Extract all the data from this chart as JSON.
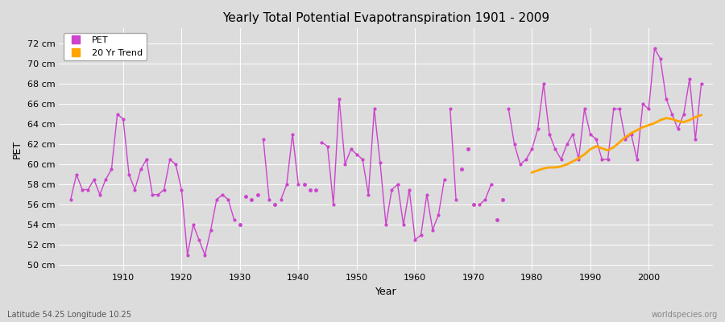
{
  "title": "Yearly Total Potential Evapotranspiration 1901 - 2009",
  "xlabel": "Year",
  "ylabel": "PET",
  "subtitle": "Latitude 54.25 Longitude 10.25",
  "watermark": "worldspecies.org",
  "pet_color": "#cc44cc",
  "trend_color": "#FFA500",
  "bg_color": "#dcdcdc",
  "ylim": [
    49.5,
    73.5
  ],
  "ytick_labels": [
    "50 cm",
    "52 cm",
    "54 cm",
    "56 cm",
    "58 cm",
    "60 cm",
    "62 cm",
    "64 cm",
    "66 cm",
    "68 cm",
    "70 cm",
    "72 cm"
  ],
  "ytick_values": [
    50,
    52,
    54,
    56,
    58,
    60,
    62,
    64,
    66,
    68,
    70,
    72
  ],
  "years": [
    1901,
    1902,
    1903,
    1904,
    1905,
    1906,
    1907,
    1908,
    1909,
    1910,
    1911,
    1912,
    1913,
    1914,
    1915,
    1916,
    1917,
    1918,
    1919,
    1920,
    1921,
    1922,
    1923,
    1924,
    1925,
    1926,
    1927,
    1928,
    1929,
    1930,
    1931,
    1932,
    1933,
    1934,
    1935,
    1936,
    1937,
    1938,
    1939,
    1940,
    1941,
    1942,
    1943,
    1944,
    1945,
    1946,
    1947,
    1948,
    1949,
    1950,
    1951,
    1952,
    1953,
    1954,
    1955,
    1956,
    1957,
    1958,
    1959,
    1960,
    1961,
    1962,
    1963,
    1964,
    1965,
    1966,
    1967,
    1968,
    1969,
    1970,
    1971,
    1972,
    1973,
    1974,
    1975,
    1976,
    1977,
    1978,
    1979,
    1980,
    1981,
    1982,
    1983,
    1984,
    1985,
    1986,
    1987,
    1988,
    1989,
    1990,
    1991,
    1992,
    1993,
    1994,
    1995,
    1996,
    1997,
    1998,
    1999,
    2000,
    2001,
    2002,
    2003,
    2004,
    2005,
    2006,
    2007,
    2008,
    2009
  ],
  "pet_values": [
    56.5,
    59.0,
    57.5,
    57.5,
    58.5,
    57.0,
    58.5,
    59.5,
    65.0,
    64.5,
    59.0,
    57.5,
    59.5,
    60.5,
    57.0,
    57.0,
    57.5,
    60.5,
    60.0,
    57.5,
    51.0,
    54.0,
    52.5,
    51.0,
    53.5,
    56.5,
    57.0,
    56.5,
    54.5,
    null,
    null,
    null,
    null,
    null,
    null,
    null,
    null,
    null,
    null,
    null,
    null,
    null,
    null,
    null,
    null,
    null,
    null,
    null,
    null,
    null,
    null,
    null,
    null,
    null,
    null,
    null,
    null,
    null,
    null,
    null,
    null,
    null,
    null,
    null,
    null,
    null,
    null,
    null,
    null,
    null,
    null,
    null,
    null,
    null,
    null,
    null,
    null,
    null,
    null,
    null,
    null,
    null,
    null,
    null,
    null,
    null,
    null,
    null,
    null,
    null,
    null,
    null,
    null,
    null,
    null,
    null,
    null,
    null,
    null,
    null,
    null,
    null,
    null,
    null,
    null,
    null,
    null,
    null
  ],
  "pet_segment2": {
    "years": [
      1930,
      1931,
      1932,
      1933,
      1934,
      1935,
      1936,
      1937,
      1938,
      1939,
      1940,
      1941,
      1942,
      1943,
      1944,
      1945,
      1946,
      1947,
      1948,
      1949,
      1950,
      1951,
      1952,
      1953,
      1954,
      1955,
      1956,
      1957,
      1958,
      1959,
      1960,
      1961,
      1962,
      1963,
      1964,
      1965,
      1966,
      1967,
      1968,
      1969,
      1970,
      1971,
      1972,
      1973,
      1974,
      1975,
      1976,
      1977,
      1978,
      1979,
      1980,
      1981,
      1982,
      1983,
      1984,
      1985,
      1986,
      1987,
      1988,
      1989,
      1990,
      1991,
      1992,
      1993,
      1994,
      1995,
      1996,
      1997,
      1998,
      1999,
      2000,
      2001,
      2002,
      2003,
      2004,
      2005,
      2006,
      2007,
      2008,
      2009
    ],
    "values": [
      null,
      null,
      null,
      null,
      null,
      null,
      null,
      null,
      null,
      null,
      null,
      null,
      null,
      null,
      null,
      null,
      null,
      null,
      null,
      null,
      null,
      null,
      null,
      null,
      null,
      null,
      null,
      null,
      null,
      null,
      null,
      null,
      null,
      null,
      null,
      null,
      null,
      null,
      null,
      null,
      null,
      null,
      null,
      null,
      null,
      null,
      null,
      null,
      null,
      null,
      null,
      null,
      null,
      null,
      null,
      null,
      null,
      null,
      null,
      null,
      null,
      null,
      null,
      null,
      null,
      null,
      null,
      null,
      null,
      null,
      null,
      null,
      null,
      null,
      null,
      null,
      null,
      null,
      null,
      null
    ]
  },
  "segments": [
    {
      "years": [
        1901,
        1902,
        1903,
        1904,
        1905,
        1906,
        1907,
        1908,
        1909,
        1910,
        1911,
        1912,
        1913,
        1914,
        1915,
        1916,
        1917,
        1918,
        1919,
        1920,
        1921,
        1922,
        1923,
        1924,
        1925,
        1926,
        1927,
        1928,
        1929
      ],
      "values": [
        56.5,
        59.0,
        57.5,
        57.5,
        58.5,
        57.0,
        58.5,
        59.5,
        65.0,
        64.5,
        59.0,
        57.5,
        59.5,
        60.5,
        57.0,
        57.0,
        57.5,
        60.5,
        60.0,
        57.5,
        51.0,
        54.0,
        52.5,
        51.0,
        53.5,
        56.5,
        57.0,
        56.5,
        54.5
      ]
    },
    {
      "years": [
        1934,
        1935
      ],
      "values": [
        62.5,
        56.5
      ]
    },
    {
      "years": [
        1937,
        1938,
        1939,
        1940
      ],
      "values": [
        56.5,
        58.0,
        63.0,
        58.0
      ]
    },
    {
      "years": [
        1944,
        1945,
        1946,
        1947,
        1948,
        1949,
        1950,
        1951,
        1952,
        1953,
        1954,
        1955,
        1956,
        1957,
        1958,
        1959,
        1960,
        1961,
        1962,
        1963,
        1964,
        1965
      ],
      "values": [
        62.2,
        61.8,
        56.0,
        66.5,
        60.0,
        61.5,
        61.0,
        60.5,
        57.0,
        65.5,
        60.2,
        54.0,
        57.5,
        58.0,
        54.0,
        57.5,
        52.5,
        53.0,
        57.0,
        53.5,
        55.0,
        58.5
      ]
    },
    {
      "years": [
        1966,
        1967
      ],
      "values": [
        65.5,
        56.5
      ]
    },
    {
      "years": [
        1971,
        1972,
        1973
      ],
      "values": [
        56.0,
        56.5,
        58.0
      ]
    },
    {
      "years": [
        1976,
        1977,
        1978,
        1979,
        1980,
        1981,
        1982,
        1983,
        1984,
        1985,
        1986,
        1987,
        1988,
        1989,
        1990,
        1991,
        1992,
        1993,
        1994,
        1995,
        1996,
        1997,
        1998,
        1999,
        2000,
        2001,
        2002,
        2003,
        2004,
        2005,
        2006,
        2007,
        2008,
        2009
      ],
      "values": [
        65.5,
        62.0,
        60.0,
        60.5,
        61.5,
        63.5,
        68.0,
        63.0,
        61.5,
        60.5,
        62.0,
        63.0,
        60.5,
        65.5,
        63.0,
        62.5,
        60.5,
        60.5,
        65.5,
        65.5,
        62.5,
        63.0,
        60.5,
        66.0,
        65.5,
        71.5,
        70.5,
        66.5,
        65.0,
        63.5,
        65.0,
        68.5,
        62.5,
        68.0
      ]
    }
  ],
  "isolated_points": {
    "years": [
      1930,
      1931,
      1932,
      1933,
      1936,
      1941,
      1942,
      1943,
      1968,
      1969,
      1970,
      1974,
      1975
    ],
    "values": [
      54.0,
      56.8,
      56.5,
      57.0,
      56.0,
      58.0,
      57.5,
      57.5,
      59.5,
      61.5,
      56.0,
      54.5,
      56.5
    ]
  },
  "trend_years": [
    1980,
    1981,
    1982,
    1983,
    1984,
    1985,
    1986,
    1987,
    1988,
    1989,
    1990,
    1991,
    1992,
    1993,
    1994,
    1995,
    1996,
    1997,
    1998,
    1999,
    2000,
    2001,
    2002,
    2003,
    2004,
    2005,
    2006,
    2007,
    2008,
    2009
  ],
  "trend_values": [
    59.2,
    59.4,
    59.6,
    59.7,
    59.7,
    59.8,
    60.0,
    60.3,
    60.6,
    61.0,
    61.5,
    61.8,
    61.6,
    61.4,
    61.7,
    62.2,
    62.7,
    63.1,
    63.4,
    63.7,
    63.9,
    64.1,
    64.4,
    64.6,
    64.5,
    64.3,
    64.2,
    64.4,
    64.7,
    64.9
  ]
}
